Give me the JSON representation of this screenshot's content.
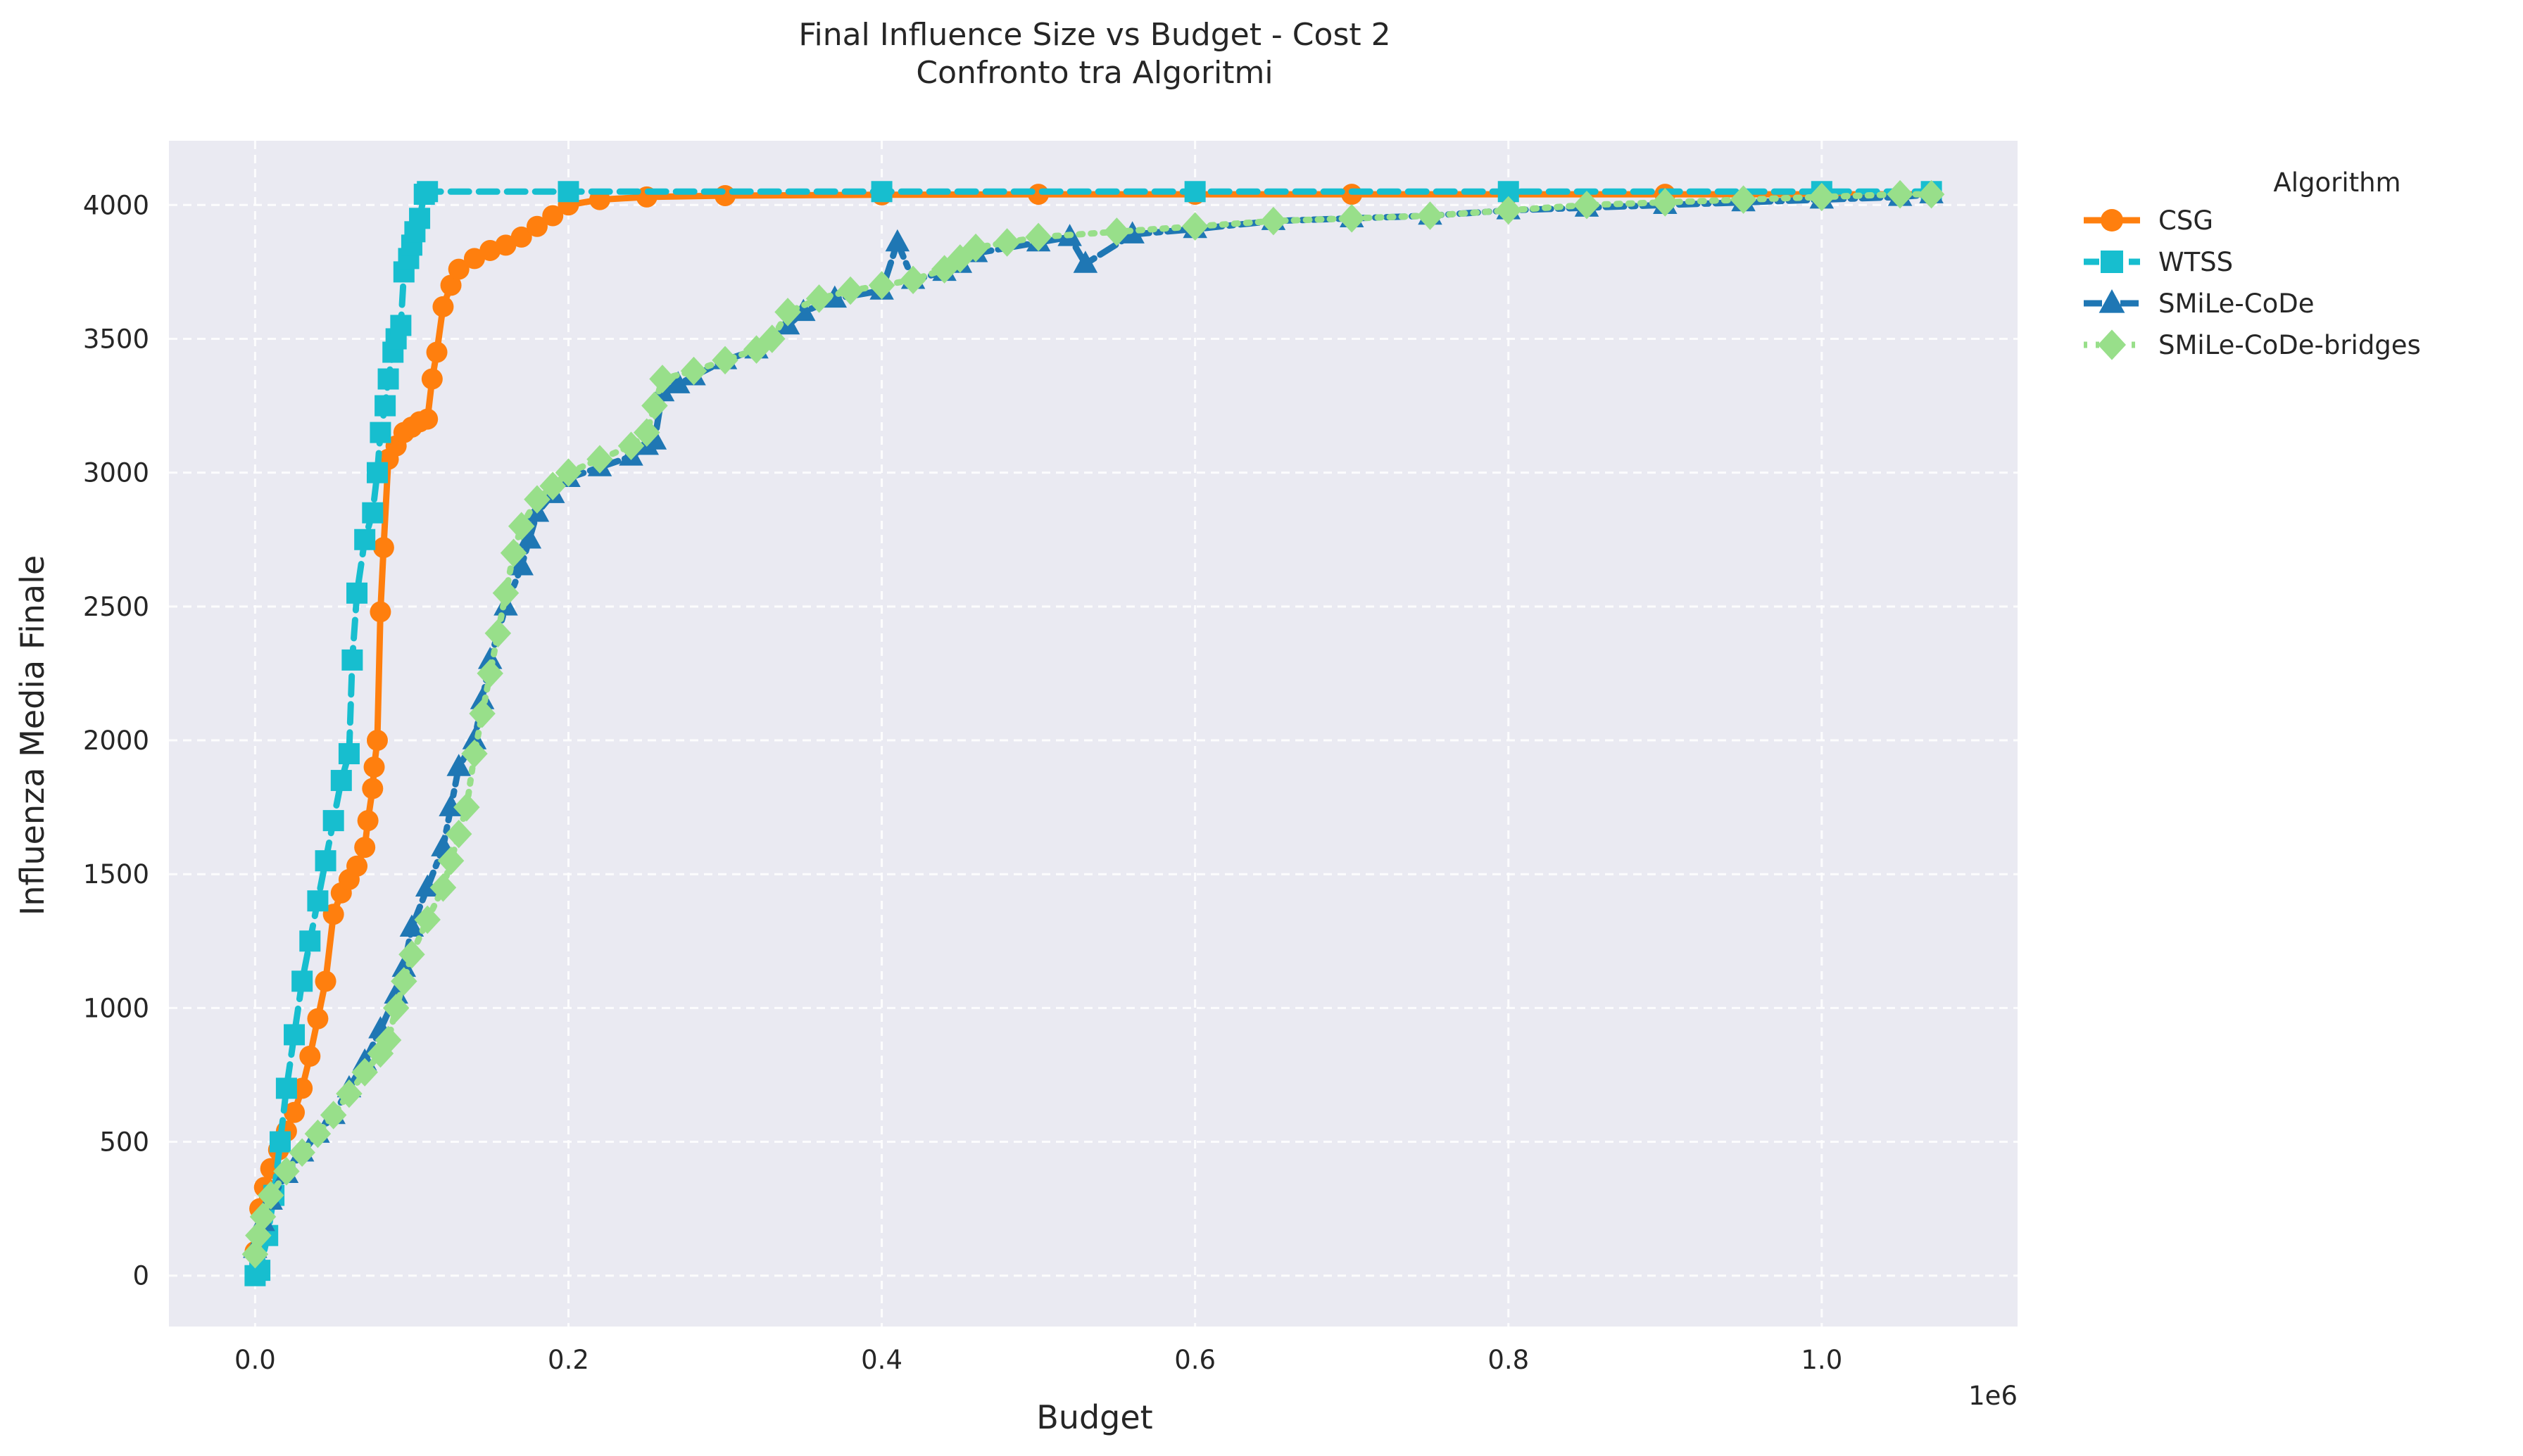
{
  "chart_data": {
    "type": "line",
    "title": "Final Influence Size vs Budget - Cost 2",
    "subtitle": "Confronto tra Algoritmi",
    "xlabel": "Budget",
    "ylabel": "Influenza Media Finale",
    "x_offset_label": "1e6",
    "x_unit_scale": 1000000,
    "xlim": [
      -55000,
      1125000
    ],
    "ylim": [
      -190,
      4240
    ],
    "xticks": [
      0,
      200000,
      400000,
      600000,
      800000,
      1000000
    ],
    "xtick_labels": [
      "0.0",
      "0.2",
      "0.4",
      "0.6",
      "0.8",
      "1.0"
    ],
    "yticks": [
      0,
      500,
      1000,
      1500,
      2000,
      2500,
      3000,
      3500,
      4000
    ],
    "ytick_labels": [
      "0",
      "500",
      "1000",
      "1500",
      "2000",
      "2500",
      "3000",
      "3500",
      "4000"
    ],
    "grid": true,
    "legend": {
      "title": "Algorithm",
      "position": "outside-right-top"
    },
    "background": "#eaeaf2",
    "series": [
      {
        "name": "CSG",
        "color": "#ff7f0e",
        "linestyle": "solid",
        "marker": "circle",
        "x": [
          0,
          3000,
          6000,
          10000,
          15000,
          20000,
          25000,
          30000,
          35000,
          40000,
          45000,
          50000,
          55000,
          60000,
          65000,
          70000,
          72000,
          75000,
          76000,
          78000,
          80000,
          82000,
          85000,
          90000,
          95000,
          100000,
          105000,
          110000,
          113000,
          116000,
          120000,
          125000,
          130000,
          140000,
          150000,
          160000,
          170000,
          180000,
          190000,
          200000,
          220000,
          250000,
          300000,
          400000,
          500000,
          600000,
          700000,
          800000,
          900000,
          1000000,
          1070000
        ],
        "y": [
          90,
          250,
          330,
          400,
          470,
          540,
          610,
          700,
          820,
          960,
          1100,
          1350,
          1430,
          1480,
          1530,
          1600,
          1700,
          1820,
          1900,
          2000,
          2480,
          2720,
          3050,
          3100,
          3150,
          3170,
          3190,
          3200,
          3350,
          3450,
          3620,
          3700,
          3760,
          3800,
          3830,
          3850,
          3880,
          3920,
          3960,
          4000,
          4020,
          4030,
          4035,
          4038,
          4040,
          4040,
          4040,
          4040,
          4040,
          4040,
          4040
        ]
      },
      {
        "name": "WTSS",
        "color": "#17becf",
        "linestyle": "dashed",
        "marker": "square",
        "x": [
          0,
          3000,
          8000,
          12000,
          16000,
          20000,
          25000,
          30000,
          35000,
          40000,
          45000,
          50000,
          55000,
          60000,
          62000,
          65000,
          70000,
          75000,
          78000,
          80000,
          83000,
          85000,
          88000,
          90000,
          93000,
          95000,
          98000,
          100000,
          102000,
          105000,
          108000,
          110000,
          200000,
          400000,
          600000,
          800000,
          1000000,
          1070000
        ],
        "y": [
          0,
          20,
          150,
          300,
          500,
          700,
          900,
          1100,
          1250,
          1400,
          1550,
          1700,
          1850,
          1950,
          2300,
          2550,
          2750,
          2850,
          3000,
          3150,
          3250,
          3350,
          3450,
          3500,
          3550,
          3750,
          3800,
          3850,
          3900,
          3950,
          4040,
          4050,
          4050,
          4050,
          4050,
          4050,
          4050,
          4050
        ]
      },
      {
        "name": "SMiLe-CoDe",
        "color": "#1f77b4",
        "linestyle": "dashdot",
        "marker": "triangle",
        "x": [
          0,
          5000,
          10000,
          20000,
          30000,
          40000,
          50000,
          60000,
          70000,
          80000,
          90000,
          95000,
          100000,
          110000,
          120000,
          125000,
          130000,
          140000,
          145000,
          150000,
          160000,
          170000,
          175000,
          180000,
          190000,
          200000,
          220000,
          240000,
          250000,
          255000,
          260000,
          270000,
          280000,
          300000,
          320000,
          340000,
          350000,
          370000,
          400000,
          410000,
          420000,
          440000,
          450000,
          460000,
          500000,
          520000,
          530000,
          560000,
          600000,
          650000,
          700000,
          750000,
          800000,
          850000,
          900000,
          950000,
          1000000,
          1050000,
          1070000
        ],
        "y": [
          100,
          200,
          280,
          380,
          460,
          530,
          600,
          700,
          800,
          920,
          1050,
          1150,
          1300,
          1450,
          1600,
          1750,
          1900,
          2000,
          2150,
          2300,
          2500,
          2650,
          2750,
          2850,
          2920,
          2980,
          3020,
          3060,
          3100,
          3120,
          3300,
          3330,
          3360,
          3420,
          3460,
          3550,
          3600,
          3650,
          3680,
          3860,
          3720,
          3750,
          3780,
          3820,
          3860,
          3880,
          3780,
          3890,
          3910,
          3940,
          3950,
          3960,
          3980,
          3990,
          4000,
          4010,
          4020,
          4030,
          4040
        ]
      },
      {
        "name": "SMiLe-CoDe-bridges",
        "color": "#98df8a",
        "linestyle": "dotted",
        "marker": "diamond",
        "x": [
          0,
          2000,
          5000,
          10000,
          20000,
          30000,
          40000,
          50000,
          60000,
          70000,
          80000,
          85000,
          90000,
          95000,
          100000,
          110000,
          120000,
          125000,
          130000,
          135000,
          140000,
          145000,
          150000,
          155000,
          160000,
          165000,
          170000,
          180000,
          190000,
          200000,
          220000,
          240000,
          250000,
          255000,
          260000,
          280000,
          300000,
          320000,
          330000,
          340000,
          360000,
          380000,
          400000,
          420000,
          440000,
          450000,
          460000,
          480000,
          500000,
          550000,
          600000,
          650000,
          700000,
          750000,
          800000,
          850000,
          900000,
          950000,
          1000000,
          1050000,
          1070000
        ],
        "y": [
          80,
          150,
          220,
          300,
          390,
          460,
          530,
          600,
          680,
          760,
          830,
          880,
          1000,
          1100,
          1200,
          1330,
          1450,
          1550,
          1650,
          1750,
          1950,
          2100,
          2250,
          2400,
          2550,
          2700,
          2800,
          2900,
          2950,
          3000,
          3050,
          3100,
          3150,
          3250,
          3350,
          3380,
          3420,
          3460,
          3500,
          3600,
          3650,
          3680,
          3700,
          3720,
          3760,
          3800,
          3840,
          3860,
          3880,
          3900,
          3920,
          3940,
          3950,
          3960,
          3980,
          4000,
          4010,
          4020,
          4030,
          4040,
          4040
        ]
      }
    ]
  }
}
